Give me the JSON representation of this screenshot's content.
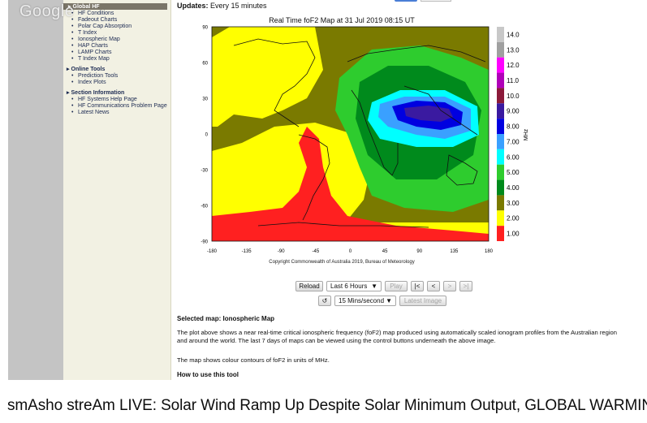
{
  "watermark": "Google",
  "nav": {
    "sections": [
      {
        "title": "Global HF",
        "items": [
          "HF Conditions",
          "Fadeout Charts",
          "Polar Cap Absorption",
          "T Index",
          "Ionospheric Map",
          "HAP Charts",
          "LAMP Charts",
          "T Index Map"
        ]
      },
      {
        "title": "Online Tools",
        "items": [
          "Prediction Tools",
          "Index Plots"
        ]
      },
      {
        "title": "Section Information",
        "items": [
          "HF Systems Help Page",
          "HF Communications Problem Page",
          "Latest News"
        ]
      }
    ]
  },
  "updates": {
    "label": "Updates:",
    "value": "Every 15 minutes"
  },
  "map": {
    "title": "Real Time foF2 Map at 31 Jul 2019 08:15 UT",
    "y_ticks": [
      "90",
      "60",
      "30",
      "0",
      "-30",
      "-60",
      "-90"
    ],
    "x_ticks": [
      "-180",
      "-135",
      "-90",
      "-45",
      "0",
      "45",
      "90",
      "135",
      "180"
    ],
    "copyright": "Copyright Commonwealth of Australia 2019, Bureau of Meteorology",
    "colorbar_unit": "MHz",
    "colorbar": [
      {
        "label": "14.0",
        "color": "#c8c8c8"
      },
      {
        "label": "13.0",
        "color": "#a0a0a0"
      },
      {
        "label": "12.0",
        "color": "#ff00ff"
      },
      {
        "label": "11.0",
        "color": "#b000b8"
      },
      {
        "label": "10.0",
        "color": "#8b1a3a"
      },
      {
        "label": "9.00",
        "color": "#3a1aa0"
      },
      {
        "label": "8.00",
        "color": "#0000e0"
      },
      {
        "label": "7.00",
        "color": "#3aa0ff"
      },
      {
        "label": "6.00",
        "color": "#00ffff"
      },
      {
        "label": "5.00",
        "color": "#2ecc2e"
      },
      {
        "label": "4.00",
        "color": "#008a1c"
      },
      {
        "label": "3.00",
        "color": "#7a7a00"
      },
      {
        "label": "2.00",
        "color": "#ffff00"
      },
      {
        "label": "1.00",
        "color": "#ff2020"
      }
    ]
  },
  "controls": {
    "reload": "Reload",
    "range": "Last 6 Hours",
    "play": "Play",
    "first": "|<",
    "prev": "<",
    "next": ">",
    "last": ">|",
    "loop": "↺",
    "speed": "15 Mins/second",
    "latest": "Latest Image"
  },
  "description": {
    "selected": "Selected map: Ionospheric Map",
    "p1": "The plot above shows a near real-time critical ionospheric frequency (foF2) map produced using automatically scaled ionogram profiles from the Australian region and around the world. The last 7 days of maps can be viewed using the control buttons underneath the above image.",
    "p2": "The map shows colour contours of foF2 in units of MHz.",
    "howto": "How to use this tool"
  },
  "caption": "smAsho streAm LIVE: Solar Wind Ramp Up Despite Solar Minimum Output, GLOBAL WARMING!"
}
